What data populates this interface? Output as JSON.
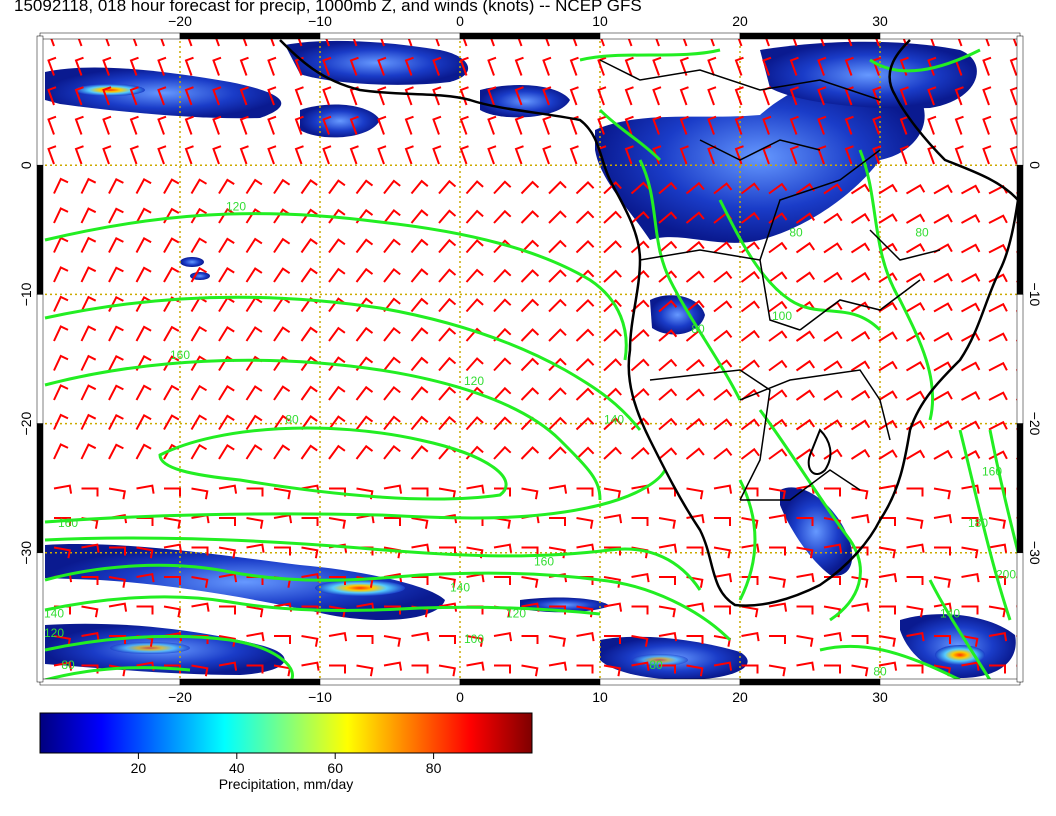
{
  "title": "15092118, 018 hour forecast for precip, 1000mb Z, and winds (knots) -- NCEP GFS",
  "map": {
    "lon_range": [
      -30,
      40
    ],
    "lat_range": [
      -40,
      10
    ],
    "top_lon_labels": [
      "−20",
      "−10",
      "0",
      "10",
      "20",
      "30"
    ],
    "bottom_lon_labels": [
      "−20",
      "−10",
      "0",
      "10",
      "20",
      "30"
    ],
    "left_lat_labels": [
      "0",
      "−10",
      "−20",
      "−30"
    ],
    "right_lat_labels": [
      "0",
      "−10",
      "−20",
      "−30"
    ],
    "lon_ticks": [
      -20,
      -10,
      0,
      10,
      20,
      30
    ],
    "lat_ticks": [
      0,
      -10,
      -20,
      -30
    ],
    "contour_labels": [
      {
        "text": "120",
        "lon": -16,
        "lat": -3.5
      },
      {
        "text": "160",
        "lon": -20,
        "lat": -15
      },
      {
        "text": "120",
        "lon": 1,
        "lat": -17
      },
      {
        "text": "80",
        "lon": -12,
        "lat": -20
      },
      {
        "text": "140",
        "lon": 11,
        "lat": -20
      },
      {
        "text": "160",
        "lon": -28,
        "lat": -28
      },
      {
        "text": "160",
        "lon": 6,
        "lat": -31
      },
      {
        "text": "140",
        "lon": 0,
        "lat": -33
      },
      {
        "text": "140",
        "lon": -29,
        "lat": -35
      },
      {
        "text": "120",
        "lon": -29,
        "lat": -36.5
      },
      {
        "text": "120",
        "lon": 4,
        "lat": -35
      },
      {
        "text": "100",
        "lon": 1,
        "lat": -37
      },
      {
        "text": "80",
        "lon": -28,
        "lat": -39
      },
      {
        "text": "80",
        "lon": 14,
        "lat": -39
      },
      {
        "text": "80",
        "lon": 30,
        "lat": -39.5
      },
      {
        "text": "160",
        "lon": 38,
        "lat": -24
      },
      {
        "text": "180",
        "lon": 37,
        "lat": -28
      },
      {
        "text": "200",
        "lon": 39,
        "lat": -32
      },
      {
        "text": "140",
        "lon": 35,
        "lat": -35
      },
      {
        "text": "80",
        "lon": 17,
        "lat": -13
      },
      {
        "text": "80",
        "lon": 24,
        "lat": -5.5
      },
      {
        "text": "80",
        "lon": 33,
        "lat": -5.5
      },
      {
        "text": "100",
        "lon": 23,
        "lat": -12
      }
    ]
  },
  "colorbar": {
    "tick_labels": [
      "20",
      "40",
      "60",
      "80"
    ],
    "ticks": [
      20,
      40,
      60,
      80
    ],
    "range": [
      0,
      100
    ],
    "label": "Precipitation, mm/day",
    "stops": [
      "#00007f",
      "#0000ff",
      "#007fff",
      "#00ffff",
      "#7fff7f",
      "#ffff00",
      "#ff7f00",
      "#ff0000",
      "#7f0000"
    ]
  },
  "colors": {
    "wind_barbs": "#ff0000",
    "height_contours": "#22ee22",
    "coastlines": "#000000",
    "gridlines": "#ccaa00"
  }
}
